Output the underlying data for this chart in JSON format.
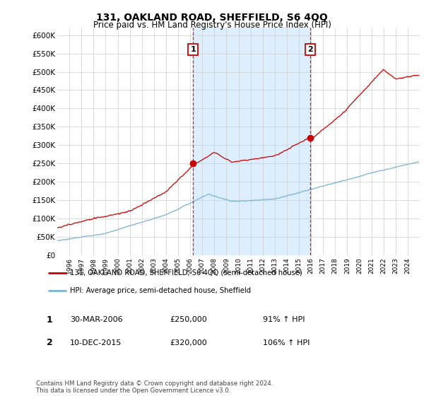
{
  "title": "131, OAKLAND ROAD, SHEFFIELD, S6 4QQ",
  "subtitle": "Price paid vs. HM Land Registry's House Price Index (HPI)",
  "ylim": [
    0,
    620000
  ],
  "yticks": [
    0,
    50000,
    100000,
    150000,
    200000,
    250000,
    300000,
    350000,
    400000,
    450000,
    500000,
    550000,
    600000
  ],
  "ytick_labels": [
    "£0",
    "£50K",
    "£100K",
    "£150K",
    "£200K",
    "£250K",
    "£300K",
    "£350K",
    "£400K",
    "£450K",
    "£500K",
    "£550K",
    "£600K"
  ],
  "house_color": "#cc0000",
  "hpi_color": "#7ab3d4",
  "vline_color": "#cc0000",
  "shade_color": "#ddeeff",
  "sale1_date": 2006.25,
  "sale1_price": 250000,
  "sale2_date": 2015.95,
  "sale2_price": 320000,
  "legend_house": "131, OAKLAND ROAD, SHEFFIELD, S6 4QQ (semi-detached house)",
  "legend_hpi": "HPI: Average price, semi-detached house, Sheffield",
  "annotation1_date": "30-MAR-2006",
  "annotation1_price": "£250,000",
  "annotation1_hpi": "91% ↑ HPI",
  "annotation2_date": "10-DEC-2015",
  "annotation2_price": "£320,000",
  "annotation2_hpi": "106% ↑ HPI",
  "footer": "Contains HM Land Registry data © Crown copyright and database right 2024.\nThis data is licensed under the Open Government Licence v3.0.",
  "background_color": "#ffffff",
  "chart_bg": "#ffffff"
}
